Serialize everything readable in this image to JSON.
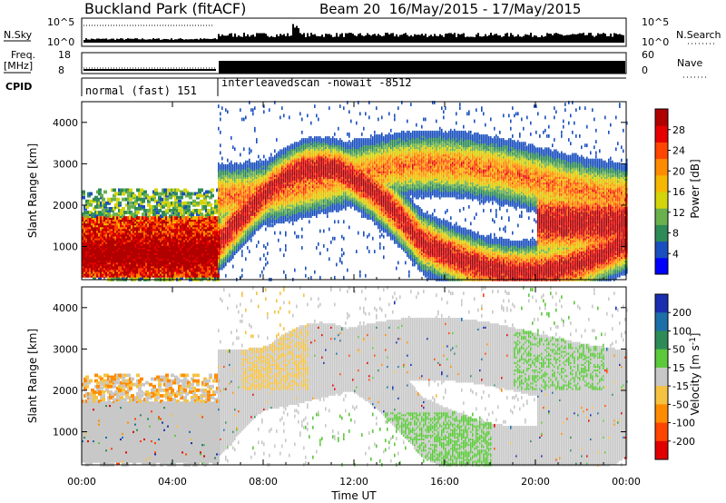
{
  "header": {
    "title": "Buckland Park (fitACF)",
    "beam_info": "Beam 20  16/May/2015 - 17/May/2015"
  },
  "noise_panel": {
    "left_label": "N.Sky",
    "right_label": "N.Search",
    "right_legend_line": "dotted",
    "left_ticks": [
      "10^5",
      "10^0"
    ],
    "right_ticks": [
      "10^5",
      "10^0"
    ]
  },
  "freq_panel": {
    "left_label_1": "Freq.",
    "left_label_2": "[MHz]",
    "right_label": "Nave",
    "left_ticks": [
      "18",
      "8"
    ],
    "right_ticks": [
      "60",
      "0"
    ]
  },
  "cpid_panel": {
    "label": "CPID",
    "segments": [
      {
        "label": "normal (fast) 151",
        "start_hour": 0,
        "end_hour": 6
      },
      {
        "label": "interleavedscan -nowait -8512",
        "start_hour": 6,
        "end_hour": 24
      }
    ]
  },
  "chart_data": [
    {
      "type": "heatmap",
      "name": "power",
      "ylabel": "Slant Range [km]",
      "yticks": [
        1000,
        2000,
        3000,
        4000
      ],
      "ylim": [
        200,
        4500
      ],
      "colorbar": {
        "label": "Power [dB]",
        "ticks": [
          "4",
          "8",
          "12",
          "16",
          "20",
          "24",
          "28"
        ],
        "colors": [
          "#0000ff",
          "#1a4fbf",
          "#2e8b57",
          "#6ab04c",
          "#d4d40a",
          "#f5b800",
          "#ff8c00",
          "#ff4500",
          "#e60000",
          "#b00000"
        ]
      }
    },
    {
      "type": "heatmap",
      "name": "velocity",
      "ylabel": "Slant Range [km]",
      "yticks": [
        1000,
        2000,
        3000,
        4000
      ],
      "ylim": [
        200,
        4500
      ],
      "xlabel": "Time UT",
      "xticks": [
        "00:00",
        "04:00",
        "08:00",
        "12:00",
        "16:00",
        "20:00",
        "00:00"
      ],
      "xlim_hours": [
        0,
        24
      ],
      "colorbar": {
        "label": "Velocity [m s^-1]",
        "ticks": [
          "200",
          "100",
          "50",
          "15",
          "-15",
          "-50",
          "-100",
          "-200"
        ],
        "colors": [
          "#1a2fb0",
          "#1d6fa8",
          "#2e8b57",
          "#5cc83c",
          "#c8c8c8",
          "#f5c242",
          "#ff8c00",
          "#ff4500",
          "#e00000"
        ]
      }
    }
  ]
}
